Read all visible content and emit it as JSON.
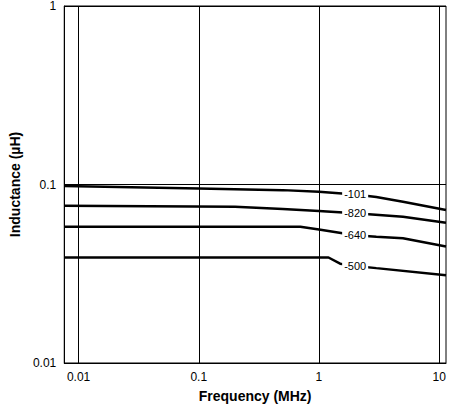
{
  "chart_data": {
    "type": "line",
    "x_label": "Frequency (MHz)",
    "y_label": "Inductance (µH)",
    "log": true,
    "grid": true,
    "xlim": [
      0.0076,
      11.4
    ],
    "ylim": [
      0.01,
      1
    ],
    "xticks": [
      0.01,
      0.1,
      1,
      10
    ],
    "yticks": [
      0.01,
      0.1,
      1
    ],
    "series": [
      {
        "name": "-101",
        "color": "#000000",
        "x": [
          0.0076,
          0.1,
          0.5,
          1,
          2,
          3,
          5,
          11.4
        ],
        "values": [
          0.098,
          0.095,
          0.093,
          0.091,
          0.088,
          0.085,
          0.08,
          0.072
        ]
      },
      {
        "name": "-820",
        "color": "#000000",
        "x": [
          0.0076,
          0.2,
          0.5,
          1,
          2,
          5,
          11.4
        ],
        "values": [
          0.076,
          0.075,
          0.073,
          0.071,
          0.069,
          0.066,
          0.061
        ]
      },
      {
        "name": "-640",
        "color": "#000000",
        "x": [
          0.0076,
          0.7,
          1,
          2,
          3,
          5,
          11.4
        ],
        "values": [
          0.058,
          0.058,
          0.056,
          0.052,
          0.051,
          0.05,
          0.045
        ]
      },
      {
        "name": "-500",
        "color": "#000000",
        "x": [
          0.0076,
          1.2,
          1.5,
          2,
          3,
          11.4
        ],
        "values": [
          0.039,
          0.039,
          0.036,
          0.035,
          0.034,
          0.031
        ]
      }
    ]
  }
}
